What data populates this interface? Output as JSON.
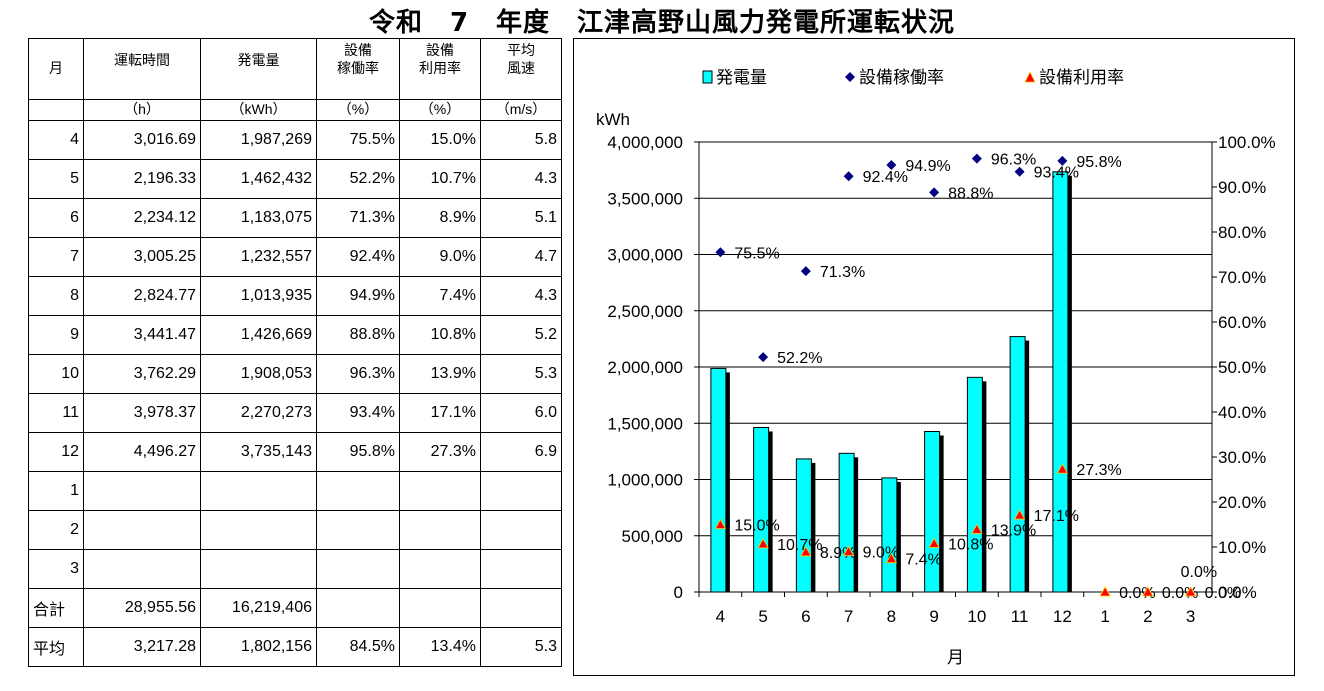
{
  "title": "令和　7　年度　江津高野山風力発電所運転状況",
  "table": {
    "headers": [
      {
        "main": "月",
        "unit": ""
      },
      {
        "main": "運転時間",
        "unit": "（h）"
      },
      {
        "main": "発電量",
        "unit": "（kWh）"
      },
      {
        "main": "設備\n稼働率",
        "unit": "（%）"
      },
      {
        "main": "設備\n利用率",
        "unit": "（%）"
      },
      {
        "main": "平均\n風速",
        "unit": "（m/s）"
      }
    ],
    "rows": [
      [
        "4",
        "3,016.69",
        "1,987,269",
        "75.5%",
        "15.0%",
        "5.8"
      ],
      [
        "5",
        "2,196.33",
        "1,462,432",
        "52.2%",
        "10.7%",
        "4.3"
      ],
      [
        "6",
        "2,234.12",
        "1,183,075",
        "71.3%",
        "8.9%",
        "5.1"
      ],
      [
        "7",
        "3,005.25",
        "1,232,557",
        "92.4%",
        "9.0%",
        "4.7"
      ],
      [
        "8",
        "2,824.77",
        "1,013,935",
        "94.9%",
        "7.4%",
        "4.3"
      ],
      [
        "9",
        "3,441.47",
        "1,426,669",
        "88.8%",
        "10.8%",
        "5.2"
      ],
      [
        "10",
        "3,762.29",
        "1,908,053",
        "96.3%",
        "13.9%",
        "5.3"
      ],
      [
        "11",
        "3,978.37",
        "2,270,273",
        "93.4%",
        "17.1%",
        "6.0"
      ],
      [
        "12",
        "4,496.27",
        "3,735,143",
        "95.8%",
        "27.3%",
        "6.9"
      ],
      [
        "1",
        "",
        "",
        "",
        "",
        ""
      ],
      [
        "2",
        "",
        "",
        "",
        "",
        ""
      ],
      [
        "3",
        "",
        "",
        "",
        "",
        ""
      ],
      [
        "合計",
        "28,955.56",
        "16,219,406",
        "",
        "",
        ""
      ],
      [
        "平均",
        "3,217.28",
        "1,802,156",
        "84.5%",
        "13.4%",
        "5.3"
      ]
    ]
  },
  "chart_data": {
    "type": "bar",
    "categories": [
      "4",
      "5",
      "6",
      "7",
      "8",
      "9",
      "10",
      "11",
      "12",
      "1",
      "2",
      "3"
    ],
    "xlabel": "月",
    "ylabel": "kWh",
    "ylim": [
      0,
      4000000
    ],
    "yticks": [
      "0",
      "500,000",
      "1,000,000",
      "1,500,000",
      "2,000,000",
      "2,500,000",
      "3,000,000",
      "3,500,000",
      "4,000,000"
    ],
    "y2lim": [
      0,
      100
    ],
    "y2ticks": [
      "0.0%",
      "10.0%",
      "20.0%",
      "30.0%",
      "40.0%",
      "50.0%",
      "60.0%",
      "70.0%",
      "80.0%",
      "90.0%",
      "100.0%"
    ],
    "legend_position": "top",
    "grid": "horizontal",
    "series": [
      {
        "name": "発電量",
        "type": "bar",
        "axis": "left",
        "color": "#00ffff",
        "values": [
          1987269,
          1462432,
          1183075,
          1232557,
          1013935,
          1426669,
          1908053,
          2270273,
          3735143,
          0,
          0,
          0
        ]
      },
      {
        "name": "設備稼働率",
        "type": "scatter",
        "axis": "right",
        "color": "#000080",
        "marker": "diamond",
        "values": [
          75.5,
          52.2,
          71.3,
          92.4,
          94.9,
          88.8,
          96.3,
          93.4,
          95.8,
          null,
          null,
          null
        ],
        "labels": [
          "75.5%",
          "52.2%",
          "71.3%",
          "92.4%",
          "94.9%",
          "88.8%",
          "96.3%",
          "93.4%",
          "95.8%",
          "",
          "",
          ""
        ]
      },
      {
        "name": "設備利用率",
        "type": "scatter",
        "axis": "right",
        "color": "#ff0000",
        "marker": "triangle",
        "values": [
          15.0,
          10.7,
          8.9,
          9.0,
          7.4,
          10.8,
          13.9,
          17.1,
          27.3,
          0,
          0,
          0
        ],
        "labels": [
          "15.0%",
          "10.7%",
          "8.9%",
          "9.0%",
          "7.4%",
          "10.8%",
          "13.9%",
          "17.1%",
          "27.3%",
          "0.0%",
          "0.0%",
          "0.0%"
        ]
      }
    ],
    "extra_labels": [
      "0.0%"
    ]
  }
}
